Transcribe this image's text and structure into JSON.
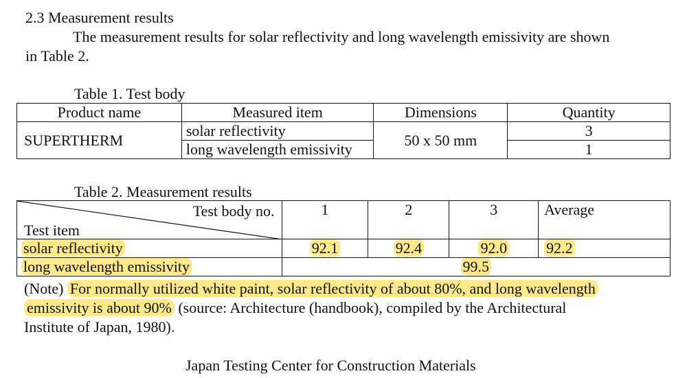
{
  "section": {
    "heading": "2.3 Measurement results",
    "intro_line1": "The measurement results for solar reflectivity and long wavelength emissivity are shown",
    "intro_line2": "in Table 2."
  },
  "table1": {
    "caption": "Table 1. Test body",
    "headers": [
      "Product name",
      "Measured item",
      "Dimensions",
      "Quantity"
    ],
    "product": "SUPERTHERM",
    "item1": "solar reflectivity",
    "item2": "long wavelength emissivity",
    "dimensions": "50 x 50 mm",
    "qty1": "3",
    "qty2": "1"
  },
  "table2": {
    "caption": "Table 2. Measurement results",
    "corner_top": "Test body no.",
    "corner_bottom": "Test item",
    "col_headers": [
      "1",
      "2",
      "3",
      "Average"
    ],
    "row1_label": "solar reflectivity",
    "row1_values": [
      "92.1",
      "92.4",
      "92.0",
      "92.2"
    ],
    "row2_label": "long wavelength emissivity",
    "row2_value": "99.5"
  },
  "note": {
    "prefix": "(Note) ",
    "highlight1": "For normally utilized white paint, solar reflectivity of about 80%, and long wavelength",
    "highlight2": "emissivity is about 90%",
    "rest2": " (source: Architecture (handbook), compiled by the Architectural",
    "line3": "Institute of Japan, 1980)."
  },
  "footer": {
    "organization": "Japan Testing Center for Construction Materials"
  },
  "colors": {
    "highlight": "#fde98a"
  }
}
